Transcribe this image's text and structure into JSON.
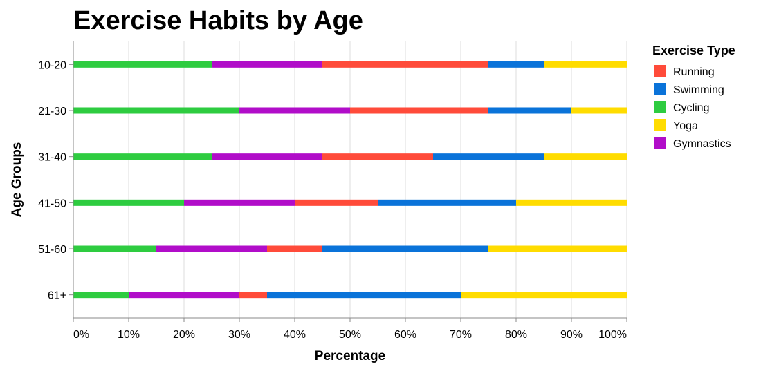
{
  "chart_data": {
    "type": "bar",
    "orientation": "horizontal",
    "stacked": true,
    "title": "Exercise Habits by Age",
    "xlabel": "Percentage",
    "ylabel": "Age Groups",
    "xlim": [
      0,
      100
    ],
    "x_ticks": [
      "0%",
      "10%",
      "20%",
      "30%",
      "40%",
      "50%",
      "60%",
      "70%",
      "80%",
      "90%",
      "100%"
    ],
    "grid": true,
    "categories": [
      "10-20",
      "21-30",
      "31-40",
      "41-50",
      "51-60",
      "61+"
    ],
    "stack_order": [
      "Cycling",
      "Gymnastics",
      "Running",
      "Swimming",
      "Yoga"
    ],
    "series": [
      {
        "name": "Running",
        "color": "#ff4b3a",
        "values": [
          30,
          25,
          20,
          15,
          10,
          5
        ]
      },
      {
        "name": "Swimming",
        "color": "#0a73d9",
        "values": [
          10,
          15,
          20,
          25,
          30,
          35
        ]
      },
      {
        "name": "Cycling",
        "color": "#2ecc40",
        "values": [
          25,
          30,
          25,
          20,
          15,
          10
        ]
      },
      {
        "name": "Yoga",
        "color": "#ffdc00",
        "values": [
          15,
          10,
          15,
          20,
          25,
          30
        ]
      },
      {
        "name": "Gymnastics",
        "color": "#b10dc9",
        "values": [
          20,
          20,
          20,
          20,
          20,
          20
        ]
      }
    ],
    "legend": {
      "title": "Exercise Type",
      "position": "right"
    }
  }
}
